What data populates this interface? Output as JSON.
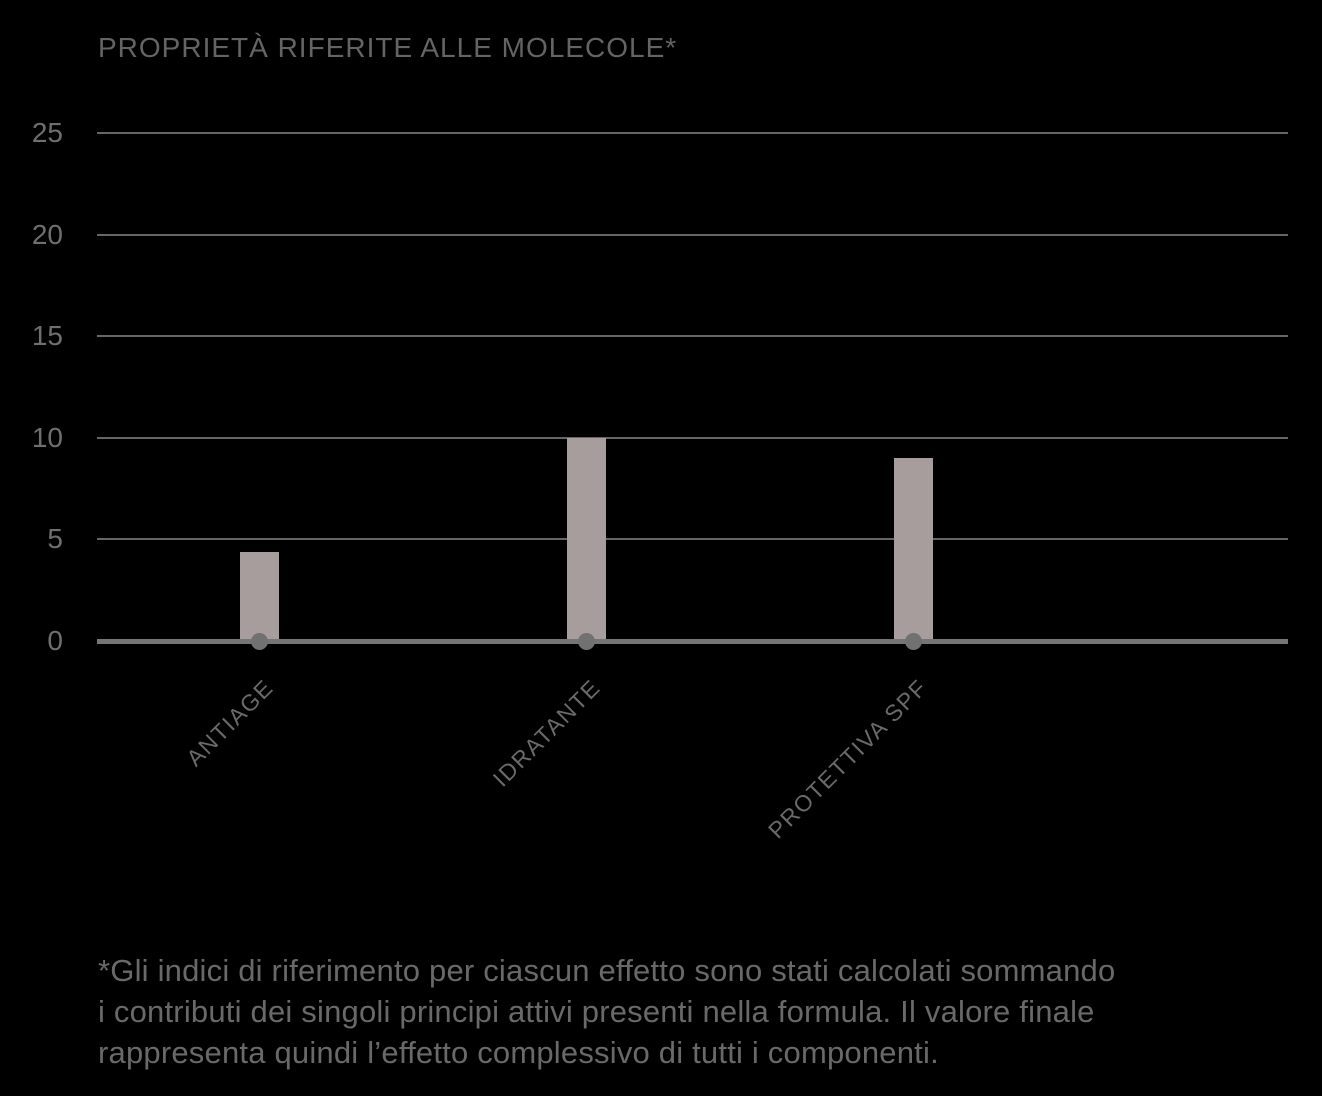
{
  "title": "PROPRIETÀ RIFERITE ALLE MOLECOLE*",
  "chart_data": {
    "type": "bar",
    "title": "PROPRIETÀ RIFERITE ALLE MOLECOLE*",
    "categories": [
      "ANTIAGE",
      "IDRATANTE",
      "PROTETTIVA SPF"
    ],
    "values": [
      4.4,
      10,
      9
    ],
    "xlabel": "",
    "ylabel": "",
    "ylim": [
      0,
      25
    ],
    "yticks": [
      0,
      5,
      10,
      15,
      20,
      25
    ],
    "grid": true,
    "legend": false,
    "bar_color": "#a79d9c",
    "grid_color": "#666666",
    "axis_color": "#757575",
    "dot_color": "#717171",
    "label_color": "#6a6a6a",
    "tick_color": "#6f6f6f",
    "background": "#000000"
  },
  "footnote": {
    "lines": [
      "*Gli indici di riferimento per ciascun effetto sono stati calcolati sommando",
      "i contributi dei singoli principi attivi presenti nella formula. Il valore finale",
      "rappresenta quindi l’effetto complessivo di tutti i componenti."
    ]
  }
}
